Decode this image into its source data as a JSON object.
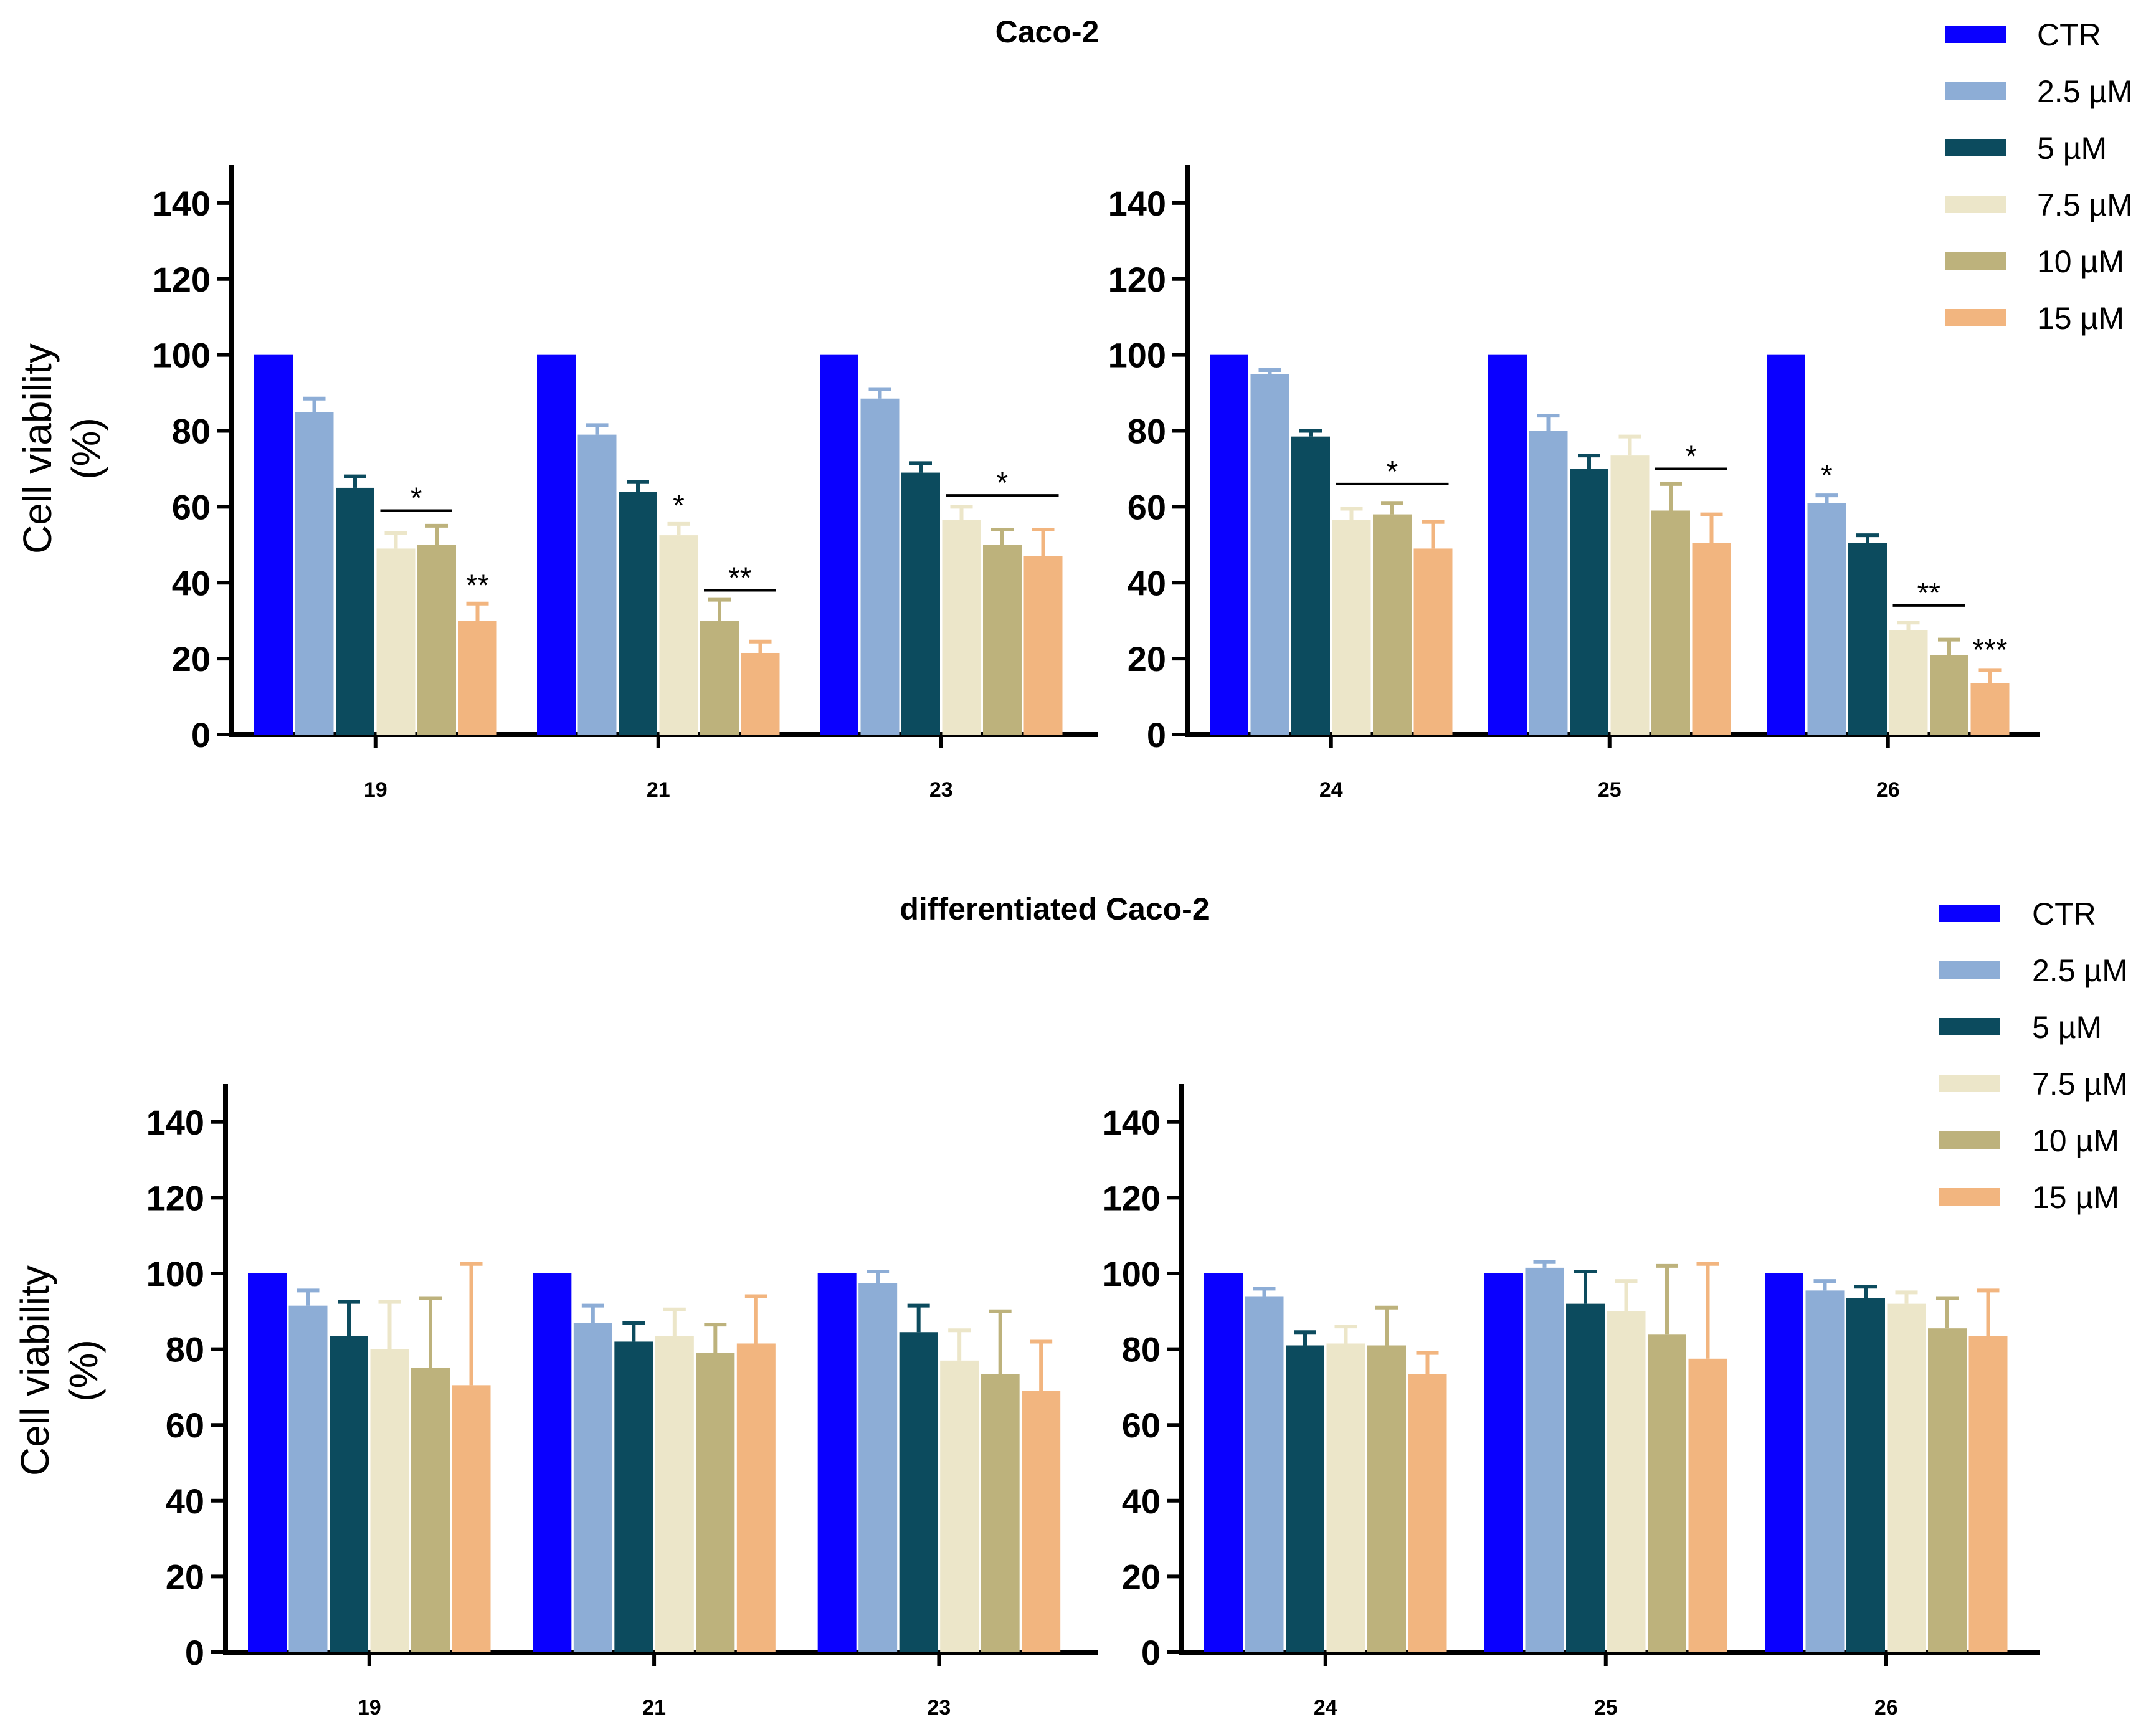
{
  "colors": {
    "CTR": "#0a00ff",
    "2.5 µM": "#8dadd6",
    "5 µM": "#0c4b5e",
    "7.5 µM": "#ece6c9",
    "10 µM": "#bdb27c",
    "15 µM": "#f2b57f"
  },
  "chart_data": [
    {
      "type": "bar",
      "section_title": "Caco-2",
      "ylabel_line1": "Cell viability",
      "ylabel_line2": "(%)",
      "xlabel": "",
      "ylim": [
        0,
        150
      ],
      "yticks": [
        0,
        20,
        40,
        60,
        80,
        100,
        120,
        140
      ],
      "categories": [
        "19",
        "21",
        "23"
      ],
      "series": [
        {
          "name": "CTR",
          "values": [
            100,
            100,
            100
          ],
          "errors": [
            0,
            0,
            0
          ]
        },
        {
          "name": "2.5 µM",
          "values": [
            85,
            79,
            88.5
          ],
          "errors": [
            3.5,
            2.5,
            2.5
          ]
        },
        {
          "name": "5 µM",
          "values": [
            65,
            64,
            69
          ],
          "errors": [
            3,
            2.5,
            2.5
          ]
        },
        {
          "name": "7.5 µM",
          "values": [
            49,
            52.5,
            56.5
          ],
          "errors": [
            4,
            3,
            3.5
          ]
        },
        {
          "name": "10 µM",
          "values": [
            50,
            30,
            50
          ],
          "errors": [
            5,
            5.5,
            4
          ]
        },
        {
          "name": "15 µM",
          "values": [
            30,
            21.5,
            47
          ],
          "errors": [
            4.5,
            3,
            7
          ]
        }
      ],
      "annotations": [
        {
          "text": "*",
          "category": 0,
          "from": 3,
          "to": 4,
          "line": true,
          "y": 59
        },
        {
          "text": "**",
          "category": 0,
          "from": 5,
          "to": 5,
          "line": false,
          "y": 36
        },
        {
          "text": "*",
          "category": 1,
          "from": 3,
          "to": 3,
          "line": false,
          "y": 57
        },
        {
          "text": "**",
          "category": 1,
          "from": 4,
          "to": 5,
          "line": true,
          "y": 38
        },
        {
          "text": "*",
          "category": 2,
          "from": 3,
          "to": 5,
          "line": true,
          "y": 63
        }
      ],
      "legend": [
        "CTR",
        "2.5 µM",
        "5 µM",
        "7.5 µM",
        "10 µM",
        "15 µM"
      ]
    },
    {
      "type": "bar",
      "section_title": "",
      "ylabel_line1": "",
      "ylabel_line2": "",
      "xlabel": "",
      "ylim": [
        0,
        150
      ],
      "yticks": [
        0,
        20,
        40,
        60,
        80,
        100,
        120,
        140
      ],
      "categories": [
        "24",
        "25",
        "26"
      ],
      "series": [
        {
          "name": "CTR",
          "values": [
            100,
            100,
            100
          ],
          "errors": [
            0,
            0,
            0
          ]
        },
        {
          "name": "2.5 µM",
          "values": [
            95,
            80,
            61
          ],
          "errors": [
            1,
            4,
            2
          ]
        },
        {
          "name": "5 µM",
          "values": [
            78.5,
            70,
            50.5
          ],
          "errors": [
            1.5,
            3.5,
            2
          ]
        },
        {
          "name": "7.5 µM",
          "values": [
            56.5,
            73.5,
            27.5
          ],
          "errors": [
            3,
            5,
            2
          ]
        },
        {
          "name": "10 µM",
          "values": [
            58,
            59,
            21
          ],
          "errors": [
            3,
            7,
            4
          ]
        },
        {
          "name": "15 µM",
          "values": [
            49,
            50.5,
            13.5
          ],
          "errors": [
            7,
            7.5,
            3.5
          ]
        }
      ],
      "annotations": [
        {
          "text": "*",
          "category": 0,
          "from": 3,
          "to": 5,
          "line": true,
          "y": 66
        },
        {
          "text": "*",
          "category": 1,
          "from": 4,
          "to": 5,
          "line": true,
          "y": 70
        },
        {
          "text": "*",
          "category": 2,
          "from": 1,
          "to": 1,
          "line": false,
          "y": 65
        },
        {
          "text": "**",
          "category": 2,
          "from": 3,
          "to": 4,
          "line": true,
          "y": 34
        },
        {
          "text": "***",
          "category": 2,
          "from": 5,
          "to": 5,
          "line": false,
          "y": 19
        }
      ],
      "legend": []
    },
    {
      "type": "bar",
      "section_title": "differentiated Caco-2",
      "ylabel_line1": "Cell viability",
      "ylabel_line2": "(%)",
      "xlabel": "",
      "ylim": [
        0,
        150
      ],
      "yticks": [
        0,
        20,
        40,
        60,
        80,
        100,
        120,
        140
      ],
      "categories": [
        "19",
        "21",
        "23"
      ],
      "series": [
        {
          "name": "CTR",
          "values": [
            100,
            100,
            100
          ],
          "errors": [
            0,
            0,
            0
          ]
        },
        {
          "name": "2.5 µM",
          "values": [
            91.5,
            87,
            97.5
          ],
          "errors": [
            4,
            4.5,
            3
          ]
        },
        {
          "name": "5 µM",
          "values": [
            83.5,
            82,
            84.5
          ],
          "errors": [
            9,
            5,
            7
          ]
        },
        {
          "name": "7.5 µM",
          "values": [
            80,
            83.5,
            77
          ],
          "errors": [
            12.5,
            7,
            8
          ]
        },
        {
          "name": "10 µM",
          "values": [
            75,
            79,
            73.5
          ],
          "errors": [
            18.5,
            7.5,
            16.5
          ]
        },
        {
          "name": "15 µM",
          "values": [
            70.5,
            81.5,
            69
          ],
          "errors": [
            32,
            12.5,
            13
          ]
        }
      ],
      "annotations": [],
      "legend": [
        "CTR",
        "2.5 µM",
        "5 µM",
        "7.5 µM",
        "10 µM",
        "15 µM"
      ]
    },
    {
      "type": "bar",
      "section_title": "",
      "ylabel_line1": "",
      "ylabel_line2": "",
      "xlabel": "",
      "ylim": [
        0,
        150
      ],
      "yticks": [
        0,
        20,
        40,
        60,
        80,
        100,
        120,
        140
      ],
      "categories": [
        "24",
        "25",
        "26"
      ],
      "series": [
        {
          "name": "CTR",
          "values": [
            100,
            100,
            100
          ],
          "errors": [
            0,
            0,
            0
          ]
        },
        {
          "name": "2.5 µM",
          "values": [
            94,
            101.5,
            95.5
          ],
          "errors": [
            2,
            1.5,
            2.5
          ]
        },
        {
          "name": "5 µM",
          "values": [
            81,
            92,
            93.5
          ],
          "errors": [
            3.5,
            8.5,
            3
          ]
        },
        {
          "name": "7.5 µM",
          "values": [
            81.5,
            90,
            92
          ],
          "errors": [
            4.5,
            8,
            3
          ]
        },
        {
          "name": "10 µM",
          "values": [
            81,
            84,
            85.5
          ],
          "errors": [
            10,
            18,
            8
          ]
        },
        {
          "name": "15 µM",
          "values": [
            73.5,
            77.5,
            83.5
          ],
          "errors": [
            5.5,
            25,
            12
          ]
        }
      ],
      "annotations": [],
      "legend": []
    }
  ]
}
